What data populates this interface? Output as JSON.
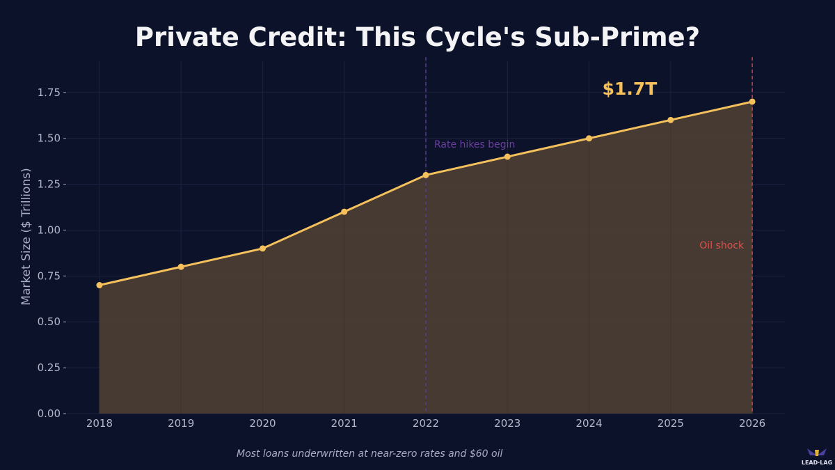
{
  "chart_data": {
    "type": "area",
    "title": "Private Credit: This Cycle's Sub-Prime?",
    "ylabel": "Market Size ($ Trillions)",
    "xlabel": "",
    "x": [
      2018,
      2019,
      2020,
      2021,
      2022,
      2023,
      2024,
      2025,
      2026
    ],
    "values": [
      0.7,
      0.8,
      0.9,
      1.1,
      1.3,
      1.4,
      1.5,
      1.6,
      1.7
    ],
    "xticks": [
      "2018",
      "2019",
      "2020",
      "2021",
      "2022",
      "2023",
      "2024",
      "2025",
      "2026"
    ],
    "yticks": [
      "0.00",
      "0.25",
      "0.50",
      "0.75",
      "1.00",
      "1.25",
      "1.50",
      "1.75"
    ],
    "xlim": [
      2017.6,
      2026.4
    ],
    "ylim": [
      0,
      1.92
    ],
    "grid": true,
    "annotations": [
      {
        "text": "Rate hikes begin",
        "x": 2022,
        "color": "#6b3fa0"
      },
      {
        "text": "Oil shock",
        "x": 2026,
        "color": "#d9534f"
      },
      {
        "text": "$1.7T",
        "color": "#f5c15c"
      }
    ],
    "caption": "Most loans underwritten at near-zero rates and $60 oil",
    "colors": {
      "line": "#f5c15c",
      "fill": "#4a3d33",
      "background": "#0c1229"
    }
  },
  "logo": {
    "text": "LEAD-LAG"
  }
}
